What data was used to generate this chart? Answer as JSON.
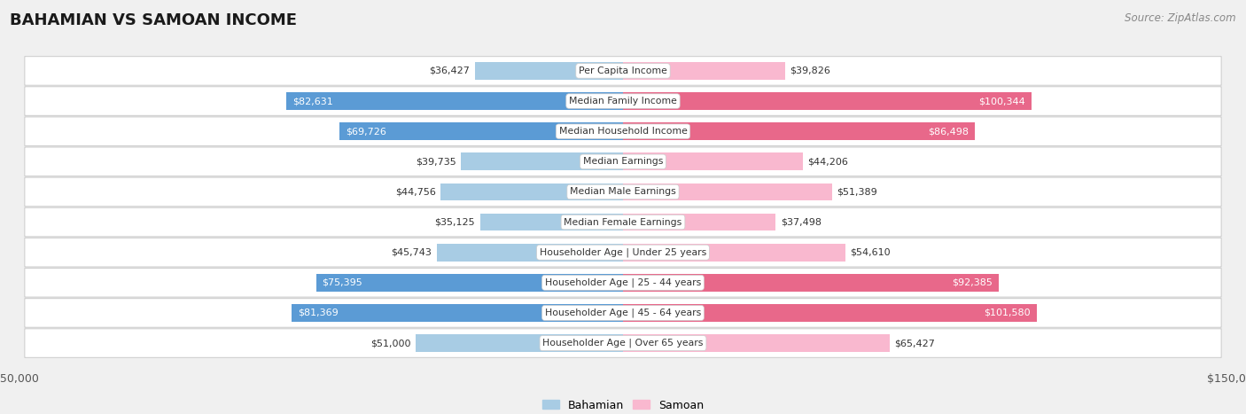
{
  "title": "BAHAMIAN VS SAMOAN INCOME",
  "source": "Source: ZipAtlas.com",
  "categories": [
    "Per Capita Income",
    "Median Family Income",
    "Median Household Income",
    "Median Earnings",
    "Median Male Earnings",
    "Median Female Earnings",
    "Householder Age | Under 25 years",
    "Householder Age | 25 - 44 years",
    "Householder Age | 45 - 64 years",
    "Householder Age | Over 65 years"
  ],
  "bahamian": [
    36427,
    82631,
    69726,
    39735,
    44756,
    35125,
    45743,
    75395,
    81369,
    51000
  ],
  "samoan": [
    39826,
    100344,
    86498,
    44206,
    51389,
    37498,
    54610,
    92385,
    101580,
    65427
  ],
  "max_val": 150000,
  "color_bahamian_light": "#a8cce4",
  "color_bahamian_dark": "#5b9bd5",
  "color_samoan_light": "#f9b8cf",
  "color_samoan_dark": "#e8688a",
  "dark_indices": [
    1,
    2,
    7,
    8
  ],
  "bg_color": "#f0f0f0",
  "row_bg_color": "#ffffff",
  "row_border_color": "#d0d0d0",
  "title_color": "#1a1a1a",
  "source_color": "#888888",
  "value_color_dark": "#333333",
  "value_color_white": "#ffffff"
}
